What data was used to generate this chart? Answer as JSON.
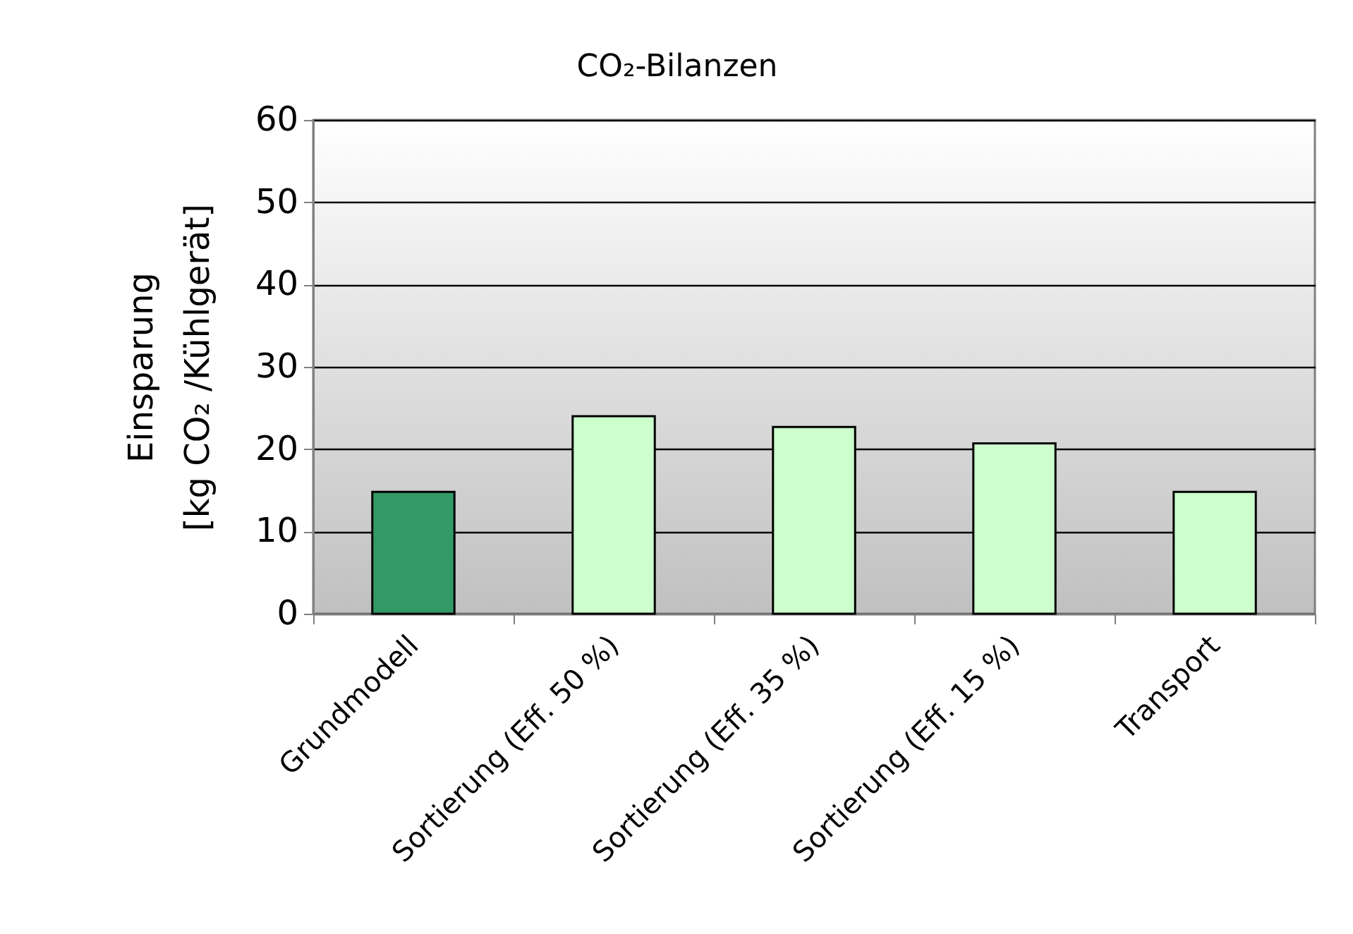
{
  "chart_data": {
    "type": "bar",
    "title": "CO₂-Bilanzen",
    "ylabel": "Einsparung\n[kg CO₂ /Kühlgerät]",
    "categories": [
      "Grundmodell",
      "Sortierung (Eff. 50 %)",
      "Sortierung (Eff. 35 %)",
      "Sortierung (Eff. 15 %)",
      "Transport"
    ],
    "values": [
      14.8,
      24,
      22.7,
      20.7,
      14.8
    ],
    "colors": [
      "#339966",
      "#ccffcc",
      "#ccffcc",
      "#ccffcc",
      "#ccffcc"
    ],
    "ylim": [
      0,
      60
    ],
    "yticks": [
      0,
      10,
      20,
      30,
      40,
      50,
      60
    ],
    "grid": "y"
  }
}
